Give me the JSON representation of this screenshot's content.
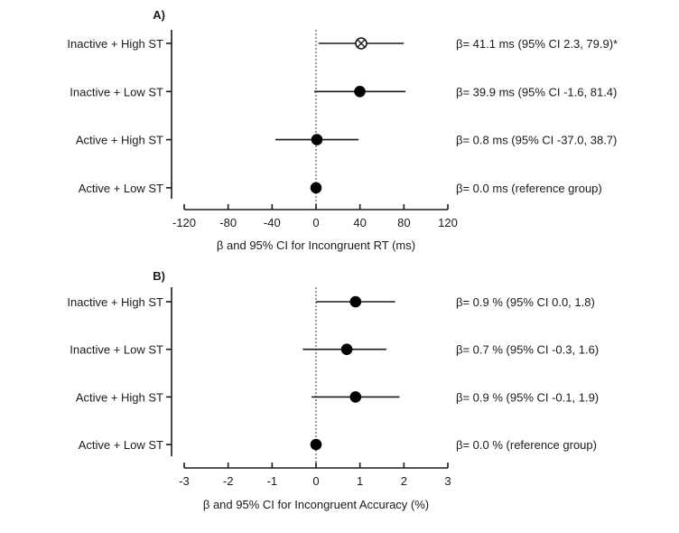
{
  "chart_data": [
    {
      "type": "forest",
      "panel_label": "A)",
      "xlabel": "β and 95% CI for Incongruent RT (ms)",
      "xlim": [
        -120,
        120
      ],
      "xticks": [
        -120,
        -80,
        -40,
        0,
        40,
        80,
        120
      ],
      "reference_line": 0,
      "rows": [
        {
          "label": "Inactive + High ST",
          "beta": 41.1,
          "ci": [
            2.3,
            79.9
          ],
          "marker": "circle-cross",
          "annotation": "β= 41.1 ms (95% CI 2.3, 79.9)*"
        },
        {
          "label": "Inactive + Low ST",
          "beta": 39.9,
          "ci": [
            -1.6,
            81.4
          ],
          "marker": "filled",
          "annotation": "β= 39.9 ms (95% CI -1.6, 81.4)"
        },
        {
          "label": "Active + High ST",
          "beta": 0.8,
          "ci": [
            -37.0,
            38.7
          ],
          "marker": "filled",
          "annotation": "β= 0.8 ms (95% CI -37.0, 38.7)"
        },
        {
          "label": "Active + Low ST",
          "beta": 0.0,
          "ci": null,
          "marker": "filled",
          "annotation": "β= 0.0 ms (reference group)"
        }
      ]
    },
    {
      "type": "forest",
      "panel_label": "B)",
      "xlabel": "β and 95% CI for Incongruent Accuracy (%)",
      "xlim": [
        -3,
        3
      ],
      "xticks": [
        -3,
        -2,
        -1,
        0,
        1,
        2,
        3
      ],
      "reference_line": 0,
      "rows": [
        {
          "label": "Inactive + High ST",
          "beta": 0.9,
          "ci": [
            0.0,
            1.8
          ],
          "marker": "filled",
          "annotation": "β= 0.9 % (95% CI 0.0, 1.8)"
        },
        {
          "label": "Inactive + Low ST",
          "beta": 0.7,
          "ci": [
            -0.3,
            1.6
          ],
          "marker": "filled",
          "annotation": "β= 0.7 % (95% CI -0.3, 1.6)"
        },
        {
          "label": "Active + High ST",
          "beta": 0.9,
          "ci": [
            -0.1,
            1.9
          ],
          "marker": "filled",
          "annotation": "β= 0.9 % (95% CI -0.1, 1.9)"
        },
        {
          "label": "Active + Low ST",
          "beta": 0.0,
          "ci": null,
          "marker": "filled",
          "annotation": "β= 0.0 % (reference group)"
        }
      ]
    }
  ]
}
